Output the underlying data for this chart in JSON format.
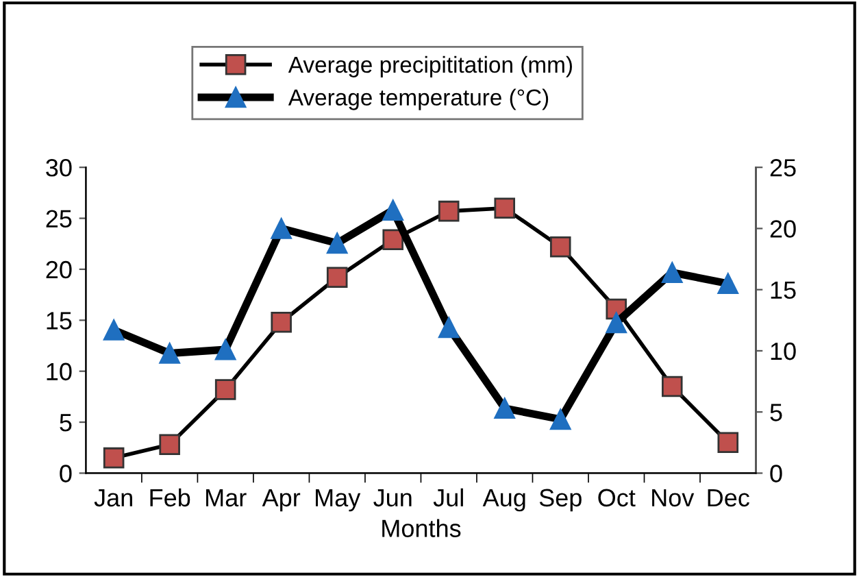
{
  "chart_data": {
    "type": "line",
    "xlabel": "Months",
    "categories": [
      "Jan",
      "Feb",
      "Mar",
      "Apr",
      "May",
      "Jun",
      "Jul",
      "Aug",
      "Sep",
      "Oct",
      "Nov",
      "Dec"
    ],
    "series": [
      {
        "name": "Average precipititation (mm)",
        "color": "#c0504d",
        "marker": "square",
        "values": [
          1.5,
          2.8,
          8.2,
          14.8,
          19.2,
          22.9,
          25.7,
          26,
          22.2,
          16.1,
          8.5,
          3
        ]
      },
      {
        "name": "Average temperature (°C)",
        "color": "#1f6fc0",
        "marker": "triangle",
        "axis": "y2",
        "values": [
          11.7,
          9.8,
          10.1,
          20,
          18.8,
          21.5,
          11.9,
          5.3,
          4.4,
          12.3,
          16.4,
          15.5
        ]
      }
    ],
    "ylim": [
      0,
      30
    ],
    "yticks": [
      0,
      5,
      10,
      15,
      20,
      25,
      30
    ],
    "y2lim": [
      0,
      25
    ],
    "y2ticks": [
      0,
      5,
      10,
      15,
      20,
      25
    ],
    "grid": false,
    "legend": "top"
  }
}
